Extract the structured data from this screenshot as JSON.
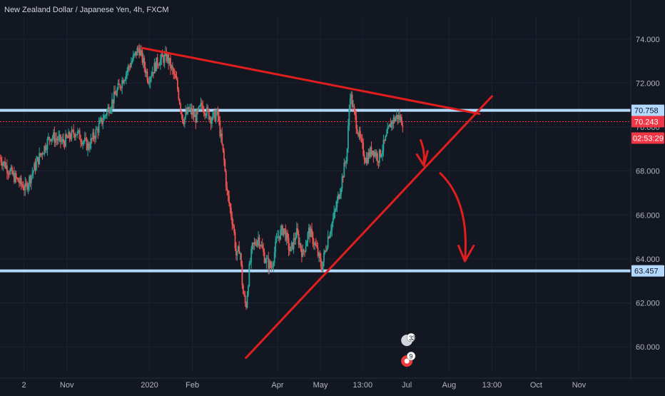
{
  "chart_data": {
    "type": "candlestick",
    "title": "New Zealand Dollar / Japanese Yen, 4h, FXCM",
    "y_ticks": [
      60,
      62,
      64,
      66,
      68,
      70,
      72,
      74
    ],
    "y_tick_labels": [
      "60.000",
      "62.000",
      "64.000",
      "66.000",
      "68.000",
      "70.000",
      "72.000",
      "74.000"
    ],
    "ylim": [
      58.9,
      75.0
    ],
    "x_ticks": [
      "2",
      "Nov",
      "2020",
      "Feb",
      "Apr",
      "May",
      "13:00",
      "Jul",
      "Aug",
      "13:00",
      "Oct",
      "Nov"
    ],
    "price_levels": [
      {
        "label": "70.758",
        "value": 70.758,
        "style": "horizontal-line",
        "color": "#b3d9ff"
      },
      {
        "label": "63.457",
        "value": 63.457,
        "style": "horizontal-line",
        "color": "#b3d9ff"
      },
      {
        "label": "70.243",
        "value": 70.243,
        "style": "current-price",
        "color": "#f23645"
      }
    ],
    "countdown": "02:53:29",
    "trendlines": [
      {
        "name": "resistance",
        "from": {
          "t": 0.225,
          "y": 73.6
        },
        "to": {
          "t": 0.76,
          "y": 70.6
        }
      },
      {
        "name": "support",
        "from": {
          "t": 0.39,
          "y": 59.5
        },
        "to": {
          "t": 0.78,
          "y": 71.4
        }
      }
    ],
    "price_path": [
      {
        "t": 0.0,
        "y": 68.6
      },
      {
        "t": 0.02,
        "y": 67.8
      },
      {
        "t": 0.04,
        "y": 67.2
      },
      {
        "t": 0.06,
        "y": 68.5
      },
      {
        "t": 0.08,
        "y": 69.6
      },
      {
        "t": 0.1,
        "y": 69.3
      },
      {
        "t": 0.12,
        "y": 69.8
      },
      {
        "t": 0.14,
        "y": 69.1
      },
      {
        "t": 0.16,
        "y": 70.2
      },
      {
        "t": 0.18,
        "y": 71.3
      },
      {
        "t": 0.2,
        "y": 72.5
      },
      {
        "t": 0.22,
        "y": 73.6
      },
      {
        "t": 0.235,
        "y": 72.2
      },
      {
        "t": 0.25,
        "y": 73.0
      },
      {
        "t": 0.265,
        "y": 73.2
      },
      {
        "t": 0.28,
        "y": 72.0
      },
      {
        "t": 0.29,
        "y": 70.3
      },
      {
        "t": 0.3,
        "y": 70.8
      },
      {
        "t": 0.31,
        "y": 70.4
      },
      {
        "t": 0.32,
        "y": 71.0
      },
      {
        "t": 0.335,
        "y": 70.4
      },
      {
        "t": 0.345,
        "y": 70.6
      },
      {
        "t": 0.355,
        "y": 68.5
      },
      {
        "t": 0.36,
        "y": 67.0
      },
      {
        "t": 0.37,
        "y": 65.5
      },
      {
        "t": 0.375,
        "y": 64.0
      },
      {
        "t": 0.38,
        "y": 64.6
      },
      {
        "t": 0.385,
        "y": 62.5
      },
      {
        "t": 0.39,
        "y": 61.8
      },
      {
        "t": 0.395,
        "y": 63.5
      },
      {
        "t": 0.4,
        "y": 64.5
      },
      {
        "t": 0.41,
        "y": 65.0
      },
      {
        "t": 0.42,
        "y": 64.0
      },
      {
        "t": 0.43,
        "y": 63.6
      },
      {
        "t": 0.44,
        "y": 65.0
      },
      {
        "t": 0.45,
        "y": 65.4
      },
      {
        "t": 0.46,
        "y": 64.3
      },
      {
        "t": 0.47,
        "y": 65.2
      },
      {
        "t": 0.48,
        "y": 64.2
      },
      {
        "t": 0.49,
        "y": 65.3
      },
      {
        "t": 0.5,
        "y": 64.6
      },
      {
        "t": 0.51,
        "y": 63.6
      },
      {
        "t": 0.52,
        "y": 65.0
      },
      {
        "t": 0.53,
        "y": 66.0
      },
      {
        "t": 0.54,
        "y": 67.3
      },
      {
        "t": 0.55,
        "y": 68.8
      },
      {
        "t": 0.555,
        "y": 71.6
      },
      {
        "t": 0.56,
        "y": 70.8
      },
      {
        "t": 0.57,
        "y": 69.5
      },
      {
        "t": 0.58,
        "y": 68.5
      },
      {
        "t": 0.59,
        "y": 69.0
      },
      {
        "t": 0.6,
        "y": 68.6
      },
      {
        "t": 0.61,
        "y": 69.3
      },
      {
        "t": 0.62,
        "y": 70.2
      },
      {
        "t": 0.63,
        "y": 70.5
      },
      {
        "t": 0.64,
        "y": 70.2
      }
    ],
    "annotations": [
      {
        "name": "short-arrow",
        "kind": "arrow",
        "direction": "down"
      },
      {
        "name": "target-arrow",
        "kind": "arrow",
        "direction": "down"
      }
    ],
    "event_badges": [
      "3",
      "3",
      "9"
    ],
    "grid": true,
    "legend": "none",
    "colors": {
      "background": "#131722",
      "up": "#26a69a",
      "down": "#ef5350",
      "trendline": "#e01e1e",
      "level": "#b3d9ff",
      "current": "#f23645",
      "grid": "#1e2231"
    }
  }
}
